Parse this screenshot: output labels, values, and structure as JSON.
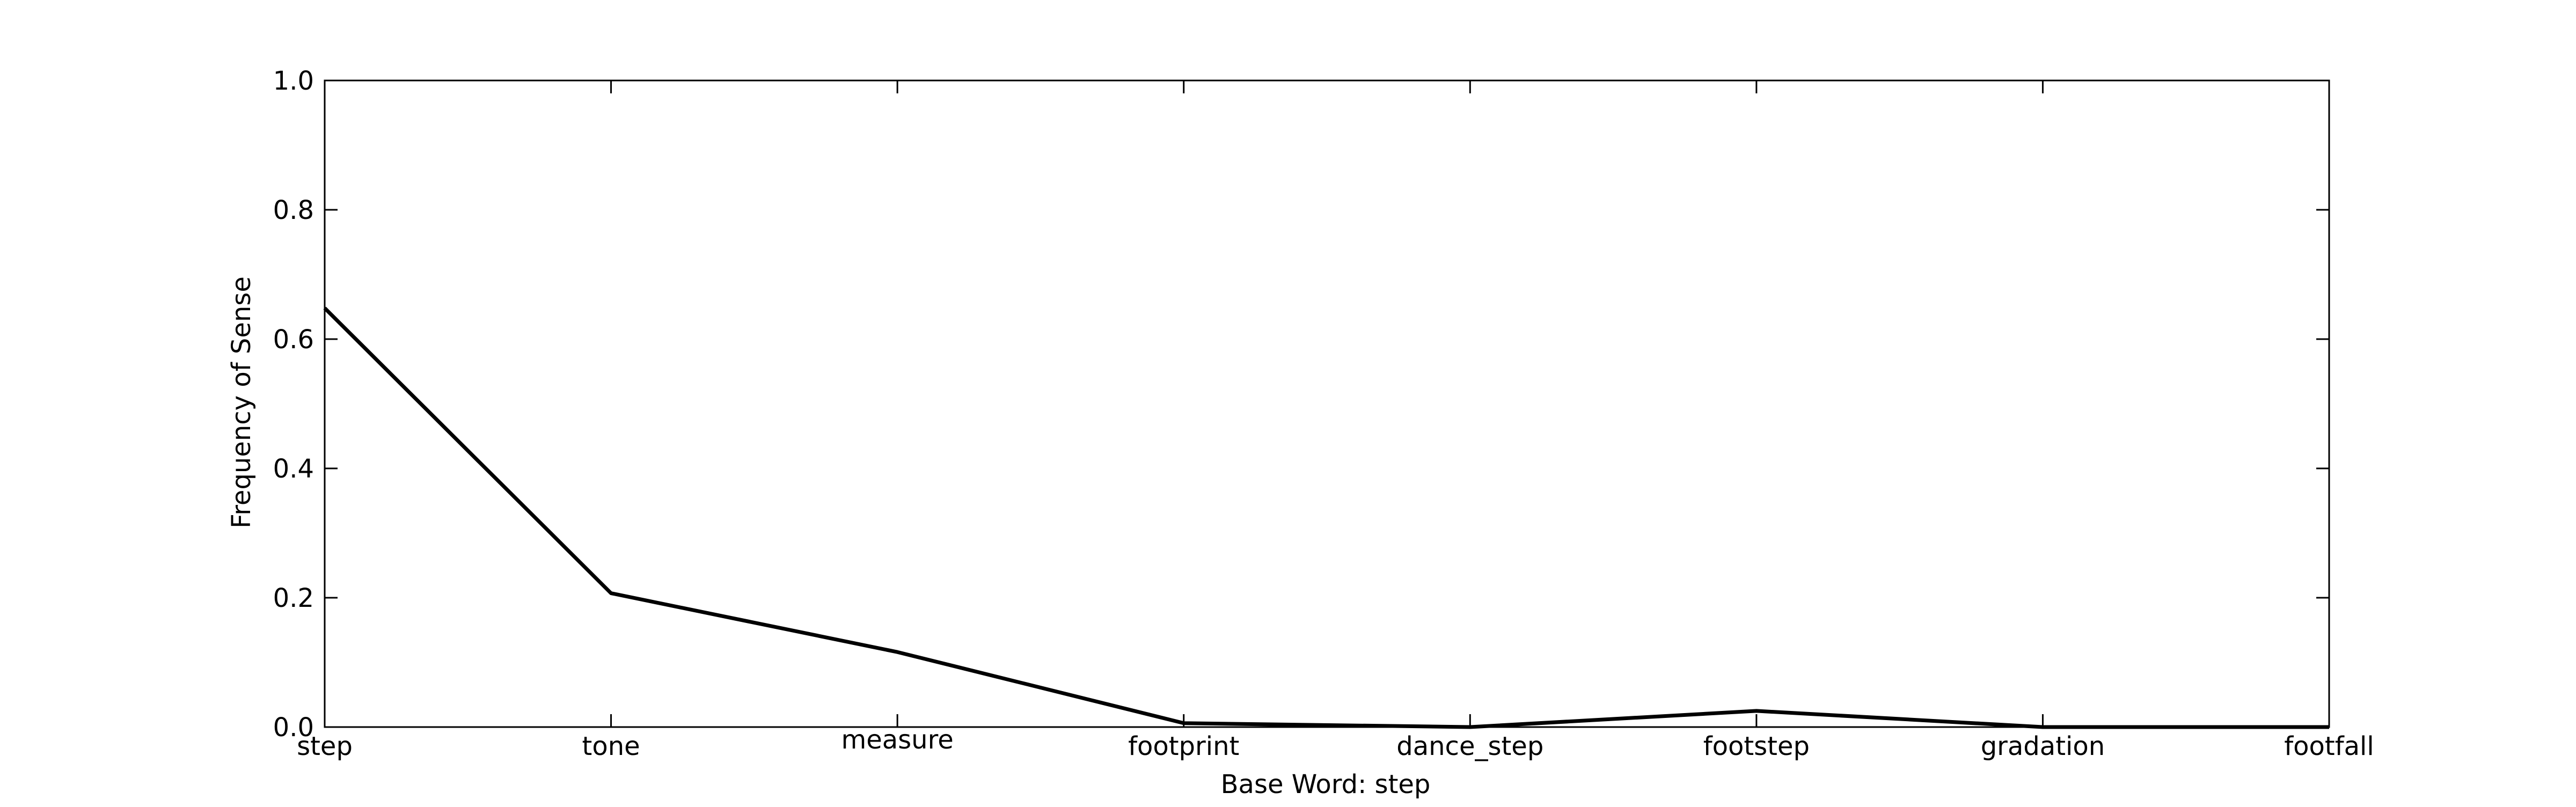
{
  "chart_data": {
    "type": "line",
    "title": "",
    "xlabel": "Base Word: step",
    "ylabel": "Frequency of Sense",
    "categories": [
      "step",
      "tone",
      "measure",
      "footprint",
      "dance_step",
      "footstep",
      "gradation",
      "footfall"
    ],
    "series": [
      {
        "values": [
          0.648,
          0.207,
          0.116,
          0.006,
          0.0,
          0.025,
          0.0,
          0.0
        ],
        "color": "#000000"
      }
    ],
    "ylim": [
      0.0,
      1.0
    ],
    "yticks": [
      0.0,
      0.2,
      0.4,
      0.6,
      0.8,
      1.0
    ],
    "ytick_labels": [
      "0.0",
      "0.2",
      "0.4",
      "0.6",
      "0.8",
      "1.0"
    ],
    "grid": false,
    "legend": false
  }
}
